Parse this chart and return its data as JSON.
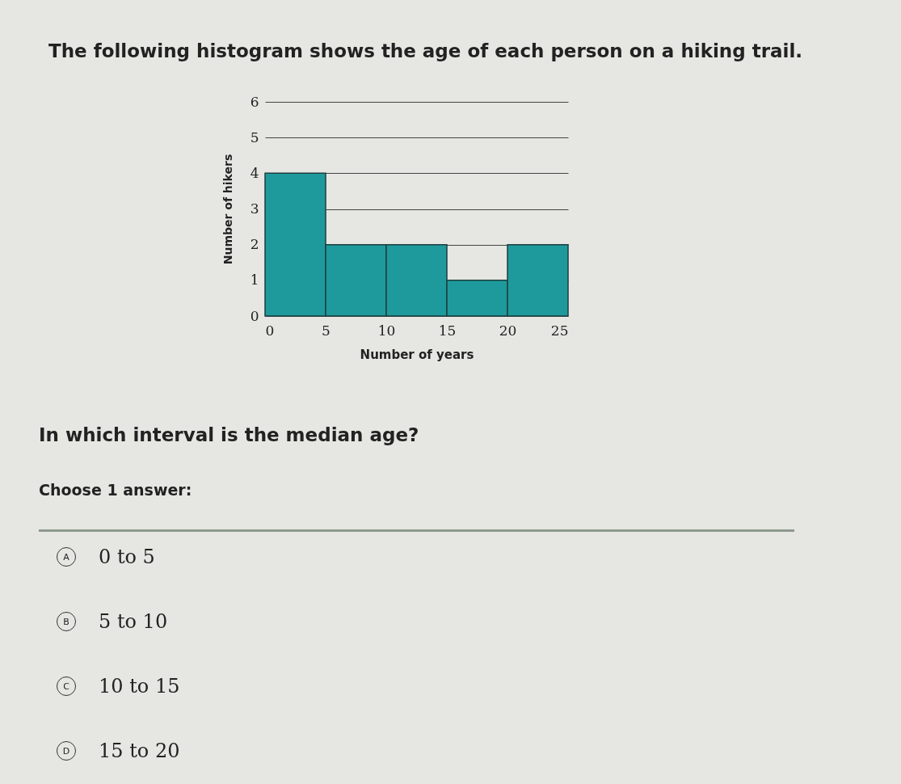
{
  "chart_data": {
    "type": "histogram",
    "title": "The following histogram shows the age of each person on a hiking trail.",
    "xlabel": "Number of years",
    "ylabel": "Number of hikers",
    "bins": [
      0,
      5,
      10,
      15,
      20,
      25
    ],
    "values": [
      4,
      2,
      2,
      1,
      2
    ],
    "color": "#1f9a9c",
    "xlim": [
      0,
      25
    ],
    "xticks": [
      0,
      5,
      10,
      15,
      20,
      25
    ],
    "ylim": [
      0,
      6
    ],
    "yticks": [
      0,
      1,
      2,
      3,
      4,
      5,
      6
    ],
    "grid": "y",
    "annotations": [
      "In which interval is the median age?",
      "Choose 1 answer:",
      "A 0 to 5",
      "B 5 to 10",
      "C 10 to 15",
      "D 15 to 20"
    ]
  }
}
